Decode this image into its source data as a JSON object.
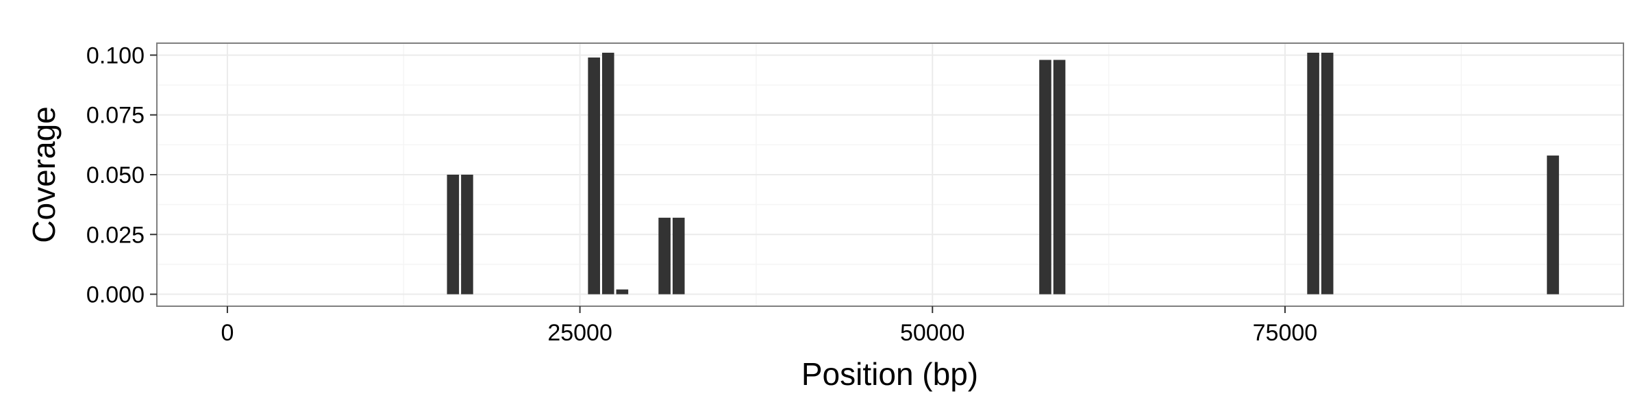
{
  "chart_data": {
    "type": "bar",
    "title": "",
    "xlabel": "Position (bp)",
    "ylabel": "Coverage",
    "xlim": [
      -5000,
      99000
    ],
    "ylim": [
      -0.005,
      0.105
    ],
    "x_ticks": [
      0,
      25000,
      50000,
      75000
    ],
    "x_tick_labels": [
      "0",
      "25000",
      "50000",
      "75000"
    ],
    "y_ticks": [
      0.0,
      0.025,
      0.05,
      0.075,
      0.1
    ],
    "y_tick_labels": [
      "0.000",
      "0.025",
      "0.050",
      "0.075",
      "0.100"
    ],
    "grid": true,
    "legend": "none",
    "bar_width": 1000,
    "bars": [
      {
        "x": 16000,
        "value": 0.05
      },
      {
        "x": 17000,
        "value": 0.05
      },
      {
        "x": 26000,
        "value": 0.099
      },
      {
        "x": 27000,
        "value": 0.101
      },
      {
        "x": 28000,
        "value": 0.002
      },
      {
        "x": 31000,
        "value": 0.032
      },
      {
        "x": 32000,
        "value": 0.032
      },
      {
        "x": 58000,
        "value": 0.098
      },
      {
        "x": 59000,
        "value": 0.098
      },
      {
        "x": 77000,
        "value": 0.101
      },
      {
        "x": 78000,
        "value": 0.101
      },
      {
        "x": 94000,
        "value": 0.058
      }
    ],
    "colors": {
      "bar": "#333333",
      "panel_border": "#7f7f7f",
      "grid_major": "#ebebeb",
      "grid_minor": "#f5f5f5",
      "tick": "#333333"
    }
  }
}
